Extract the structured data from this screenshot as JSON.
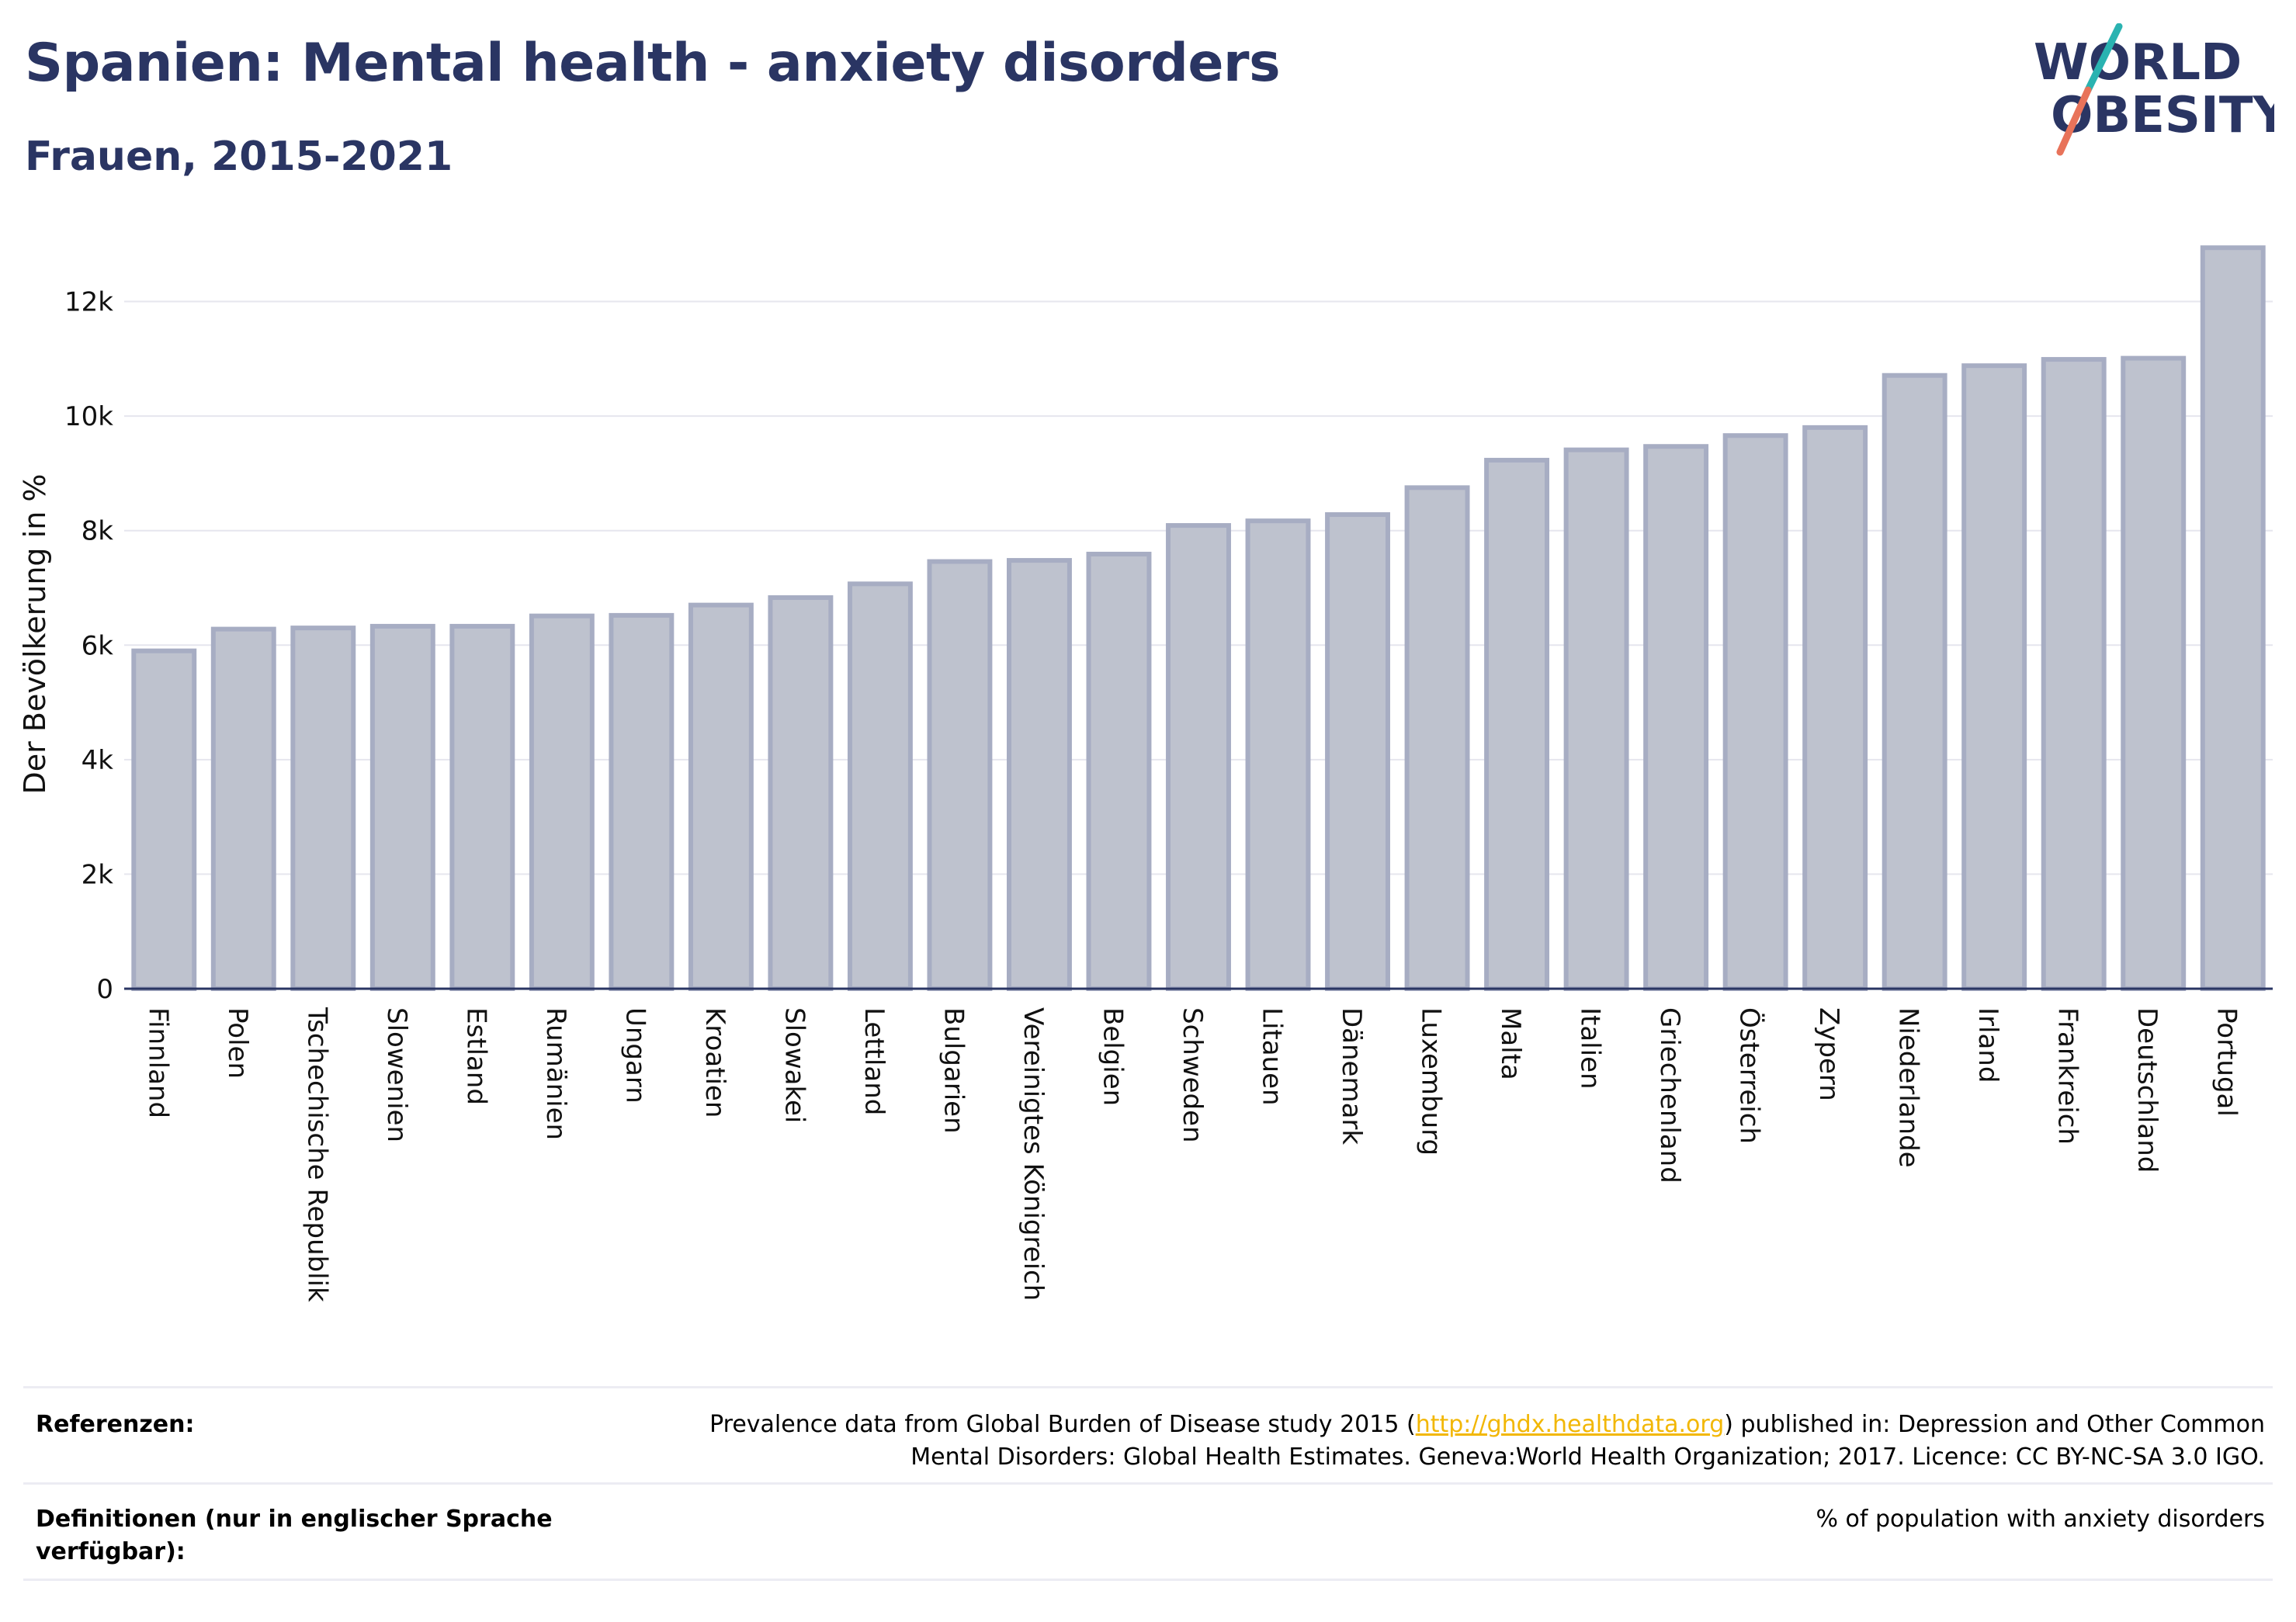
{
  "header": {
    "title": "Spanien: Mental health - anxiety disorders",
    "subtitle": "Frauen, 2015-2021"
  },
  "logo": {
    "line1": "WORLD",
    "line2": "OBESITY",
    "colors": {
      "text": "#2a3563",
      "slash_top": "#2ab3b1",
      "slash_bottom": "#e8735a"
    }
  },
  "chart_data": {
    "type": "bar",
    "ylabel": "Der Bevölkerung in %",
    "xlabel": "",
    "ylim": [
      0,
      13200
    ],
    "yticks": [
      0,
      2000,
      4000,
      6000,
      8000,
      10000,
      12000
    ],
    "ytick_labels": [
      "0",
      "2k",
      "4k",
      "6k",
      "8k",
      "10k",
      "12k"
    ],
    "grid": "horizontal",
    "bar_color": "#bec2ce",
    "bar_border": "#a7adc3",
    "categories": [
      "Finnland",
      "Polen",
      "Tschechische Republik",
      "Slowenien",
      "Estland",
      "Rumänien",
      "Ungarn",
      "Kroatien",
      "Slowakei",
      "Lettland",
      "Bulgarien",
      "Vereinigtes Königreich",
      "Belgien",
      "Schweden",
      "Litauen",
      "Dänemark",
      "Luxemburg",
      "Malta",
      "Italien",
      "Griechenland",
      "Österreich",
      "Zypern",
      "Niederlande",
      "Irland",
      "Frankreich",
      "Deutschland",
      "Portugal"
    ],
    "values": [
      5900,
      6280,
      6300,
      6330,
      6330,
      6510,
      6520,
      6700,
      6830,
      7070,
      7460,
      7480,
      7590,
      8090,
      8170,
      8280,
      8750,
      9230,
      9410,
      9470,
      9660,
      9800,
      10710,
      10880,
      10990,
      11010,
      12940
    ]
  },
  "footer": {
    "references_label": "Referenzen:",
    "references_pre": "Prevalence data from Global Burden of Disease study 2015 (",
    "references_link": "http://ghdx.healthdata.org",
    "references_post": ") published in: Depression and Other Common",
    "references_line2": "Mental Disorders: Global Health Estimates. Geneva:World Health Organization; 2017. Licence: CC BY-NC-SA 3.0 IGO.",
    "definitions_label_line1": "Definitionen (nur in englischer Sprache",
    "definitions_label_line2": "verfügbar):",
    "definitions_text": "% of population with anxiety disorders"
  }
}
